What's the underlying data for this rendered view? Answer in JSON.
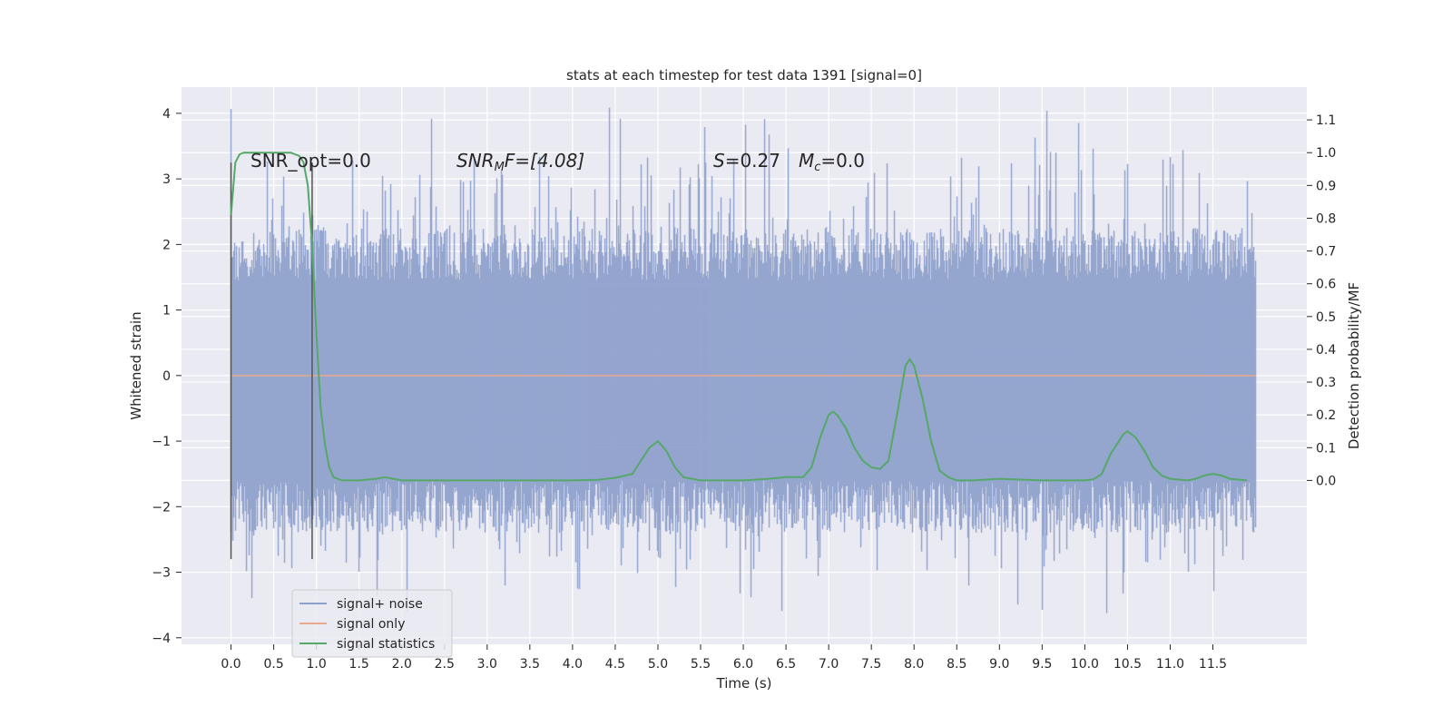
{
  "chart_data": {
    "type": "line",
    "title": "stats at each timestep for test data 1391 [signal=0]",
    "xlabel": "Time (s)",
    "ylabel": "Whitened strain",
    "ylabel_right": "Detection probability/MF",
    "xlim": [
      -0.58,
      12.6
    ],
    "ylim": [
      -4.1,
      4.4
    ],
    "ylim_right": [
      -0.5,
      1.2
    ],
    "x_ticks": [
      "0.0",
      "0.5",
      "1.0",
      "1.5",
      "2.0",
      "2.5",
      "3.0",
      "3.5",
      "4.0",
      "4.5",
      "5.0",
      "5.5",
      "6.0",
      "6.5",
      "7.0",
      "7.5",
      "8.0",
      "8.5",
      "9.0",
      "9.5",
      "10.0",
      "10.5",
      "11.0",
      "11.5"
    ],
    "y_ticks": [
      "4",
      "3",
      "2",
      "1",
      "0",
      "−1",
      "−2",
      "−3",
      "−4"
    ],
    "y_ticks_right": [
      "1.1",
      "1.0",
      "0.9",
      "0.8",
      "0.7",
      "0.6",
      "0.5",
      "0.4",
      "0.3",
      "0.2",
      "0.1",
      "0.0"
    ],
    "annotations": {
      "snr_opt": "SNR_opt=0.0",
      "snr_mf_a": "SNR",
      "snr_mf_sub": "M",
      "snr_mf_b": "F=[4.08]",
      "s_a": "S",
      "s_b": "=0.27",
      "mc_a": "M",
      "mc_sub": "c",
      "mc_b": "=0.0"
    },
    "legend_position": "lower-left",
    "grid": true,
    "series": [
      {
        "name": "signal+ noise",
        "color": "#8da0cb",
        "description": "dense noise band, x from 0.0 to 12.0",
        "band_core": [
          -1.6,
          1.45
        ],
        "peak_range": [
          -3.65,
          4.1
        ]
      },
      {
        "name": "signal only",
        "color": "#e9a98c",
        "x": [
          0.0,
          12.0
        ],
        "y": [
          0.0,
          0.0
        ]
      },
      {
        "name": "signal statistics",
        "color": "#55a868",
        "axis": "right",
        "x": [
          0.0,
          0.05,
          0.1,
          0.15,
          0.2,
          0.3,
          0.4,
          0.5,
          0.6,
          0.7,
          0.8,
          0.85,
          0.9,
          0.95,
          1.0,
          1.05,
          1.1,
          1.15,
          1.2,
          1.3,
          1.5,
          1.7,
          1.8,
          1.9,
          2.0,
          2.5,
          3.0,
          3.5,
          4.0,
          4.3,
          4.5,
          4.7,
          4.8,
          4.9,
          5.0,
          5.1,
          5.2,
          5.3,
          5.5,
          6.0,
          6.3,
          6.5,
          6.7,
          6.8,
          6.9,
          7.0,
          7.05,
          7.1,
          7.2,
          7.3,
          7.4,
          7.5,
          7.6,
          7.7,
          7.8,
          7.9,
          7.95,
          8.0,
          8.1,
          8.2,
          8.3,
          8.4,
          8.5,
          8.7,
          9.0,
          9.5,
          10.0,
          10.1,
          10.2,
          10.3,
          10.4,
          10.45,
          10.5,
          10.6,
          10.7,
          10.8,
          10.9,
          11.0,
          11.2,
          11.3,
          11.4,
          11.5,
          11.6,
          11.7,
          11.9
        ],
        "y": [
          0.81,
          0.97,
          0.995,
          1.0,
          1.0,
          1.0,
          1.0,
          1.0,
          1.0,
          1.0,
          0.99,
          0.97,
          0.9,
          0.72,
          0.45,
          0.22,
          0.11,
          0.04,
          0.01,
          0.0,
          0.0,
          0.005,
          0.01,
          0.005,
          0.0,
          0.0,
          0.0,
          0.0,
          0.0,
          0.002,
          0.008,
          0.02,
          0.06,
          0.1,
          0.12,
          0.09,
          0.04,
          0.01,
          0.0,
          0.0,
          0.005,
          0.01,
          0.01,
          0.04,
          0.13,
          0.2,
          0.21,
          0.2,
          0.16,
          0.1,
          0.06,
          0.04,
          0.035,
          0.06,
          0.2,
          0.35,
          0.37,
          0.35,
          0.25,
          0.12,
          0.03,
          0.01,
          0.0,
          0.0,
          0.005,
          0.0,
          0.0,
          0.003,
          0.02,
          0.08,
          0.12,
          0.14,
          0.15,
          0.13,
          0.09,
          0.04,
          0.015,
          0.005,
          0.0,
          0.005,
          0.015,
          0.02,
          0.015,
          0.005,
          0.0
        ]
      }
    ]
  }
}
